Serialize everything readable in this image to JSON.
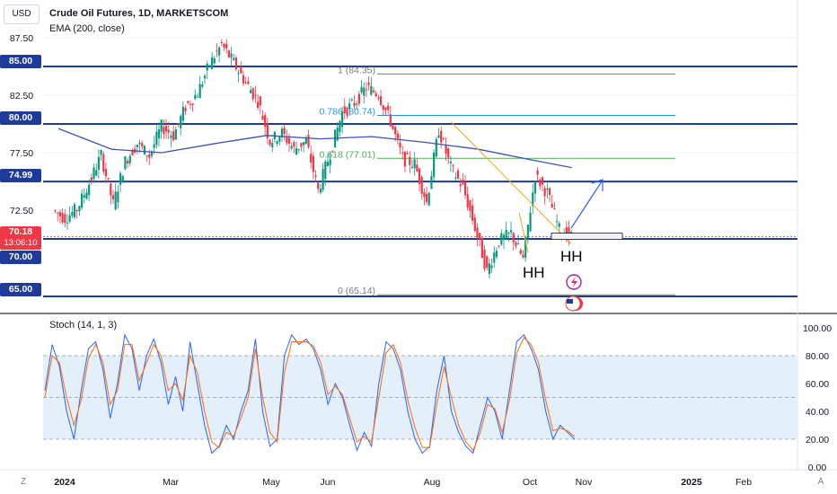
{
  "header": {
    "currency": "USD",
    "title": "Crude Oil Futures, 1D, MARKETSCOM",
    "ema_label": "EMA (200, close)",
    "stoch_label": "Stoch (14, 1, 3)"
  },
  "price_tags": {
    "current_price": "70.18",
    "countdown": "13:06:10",
    "levels": [
      "85.00",
      "80.00",
      "74.99",
      "70.00",
      "65.00"
    ]
  },
  "corner_buttons": {
    "left": "Z",
    "right": "A"
  },
  "chart_data": [
    {
      "type": "candlestick",
      "title": "Crude Oil Futures, 1D, MARKETSCOM",
      "y_axis": {
        "ticks": [
          "87.50",
          "82.50",
          "77.50",
          "72.50"
        ],
        "range": [
          64,
          89
        ]
      },
      "x_axis": {
        "ticks": [
          "2024",
          "Mar",
          "May",
          "Jun",
          "Aug",
          "Oct",
          "Nov",
          "2025",
          "Feb"
        ]
      },
      "series": [
        {
          "name": "EMA (200, close)",
          "color": "#3f51b5",
          "x": [
            "2024-01-01",
            "2024-02-01",
            "2024-03-01",
            "2024-04-01",
            "2024-05-01",
            "2024-06-01",
            "2024-07-01",
            "2024-08-01",
            "2024-09-01",
            "2024-10-01",
            "2024-10-25"
          ],
          "values": [
            79.6,
            77.8,
            77.5,
            78.3,
            79.0,
            78.7,
            78.9,
            78.4,
            77.8,
            76.9,
            76.2
          ]
        }
      ],
      "horizontal_levels": [
        85.0,
        80.0,
        74.99,
        70.0,
        65.0
      ],
      "fibonacci": [
        {
          "label": "1 (84.35)",
          "value": 84.35
        },
        {
          "label": "0.786 (80.74)",
          "value": 80.74
        },
        {
          "label": "0.618 (77.01)",
          "value": 77.01
        },
        {
          "label": "0 (65.14)",
          "value": 65.14
        }
      ],
      "annotations": [
        "HH",
        "HH"
      ],
      "candles": [
        [
          "2024-01-02",
          72.5,
          73.5,
          71.0,
          71.8
        ],
        [
          "2024-01-09",
          71.8,
          73.2,
          70.8,
          72.6
        ],
        [
          "2024-01-16",
          72.6,
          75.2,
          72.0,
          74.8
        ],
        [
          "2024-01-23",
          74.8,
          77.8,
          74.2,
          77.3
        ],
        [
          "2024-01-30",
          77.3,
          78.2,
          72.2,
          73.0
        ],
        [
          "2024-02-06",
          73.0,
          77.0,
          72.5,
          76.8
        ],
        [
          "2024-02-13",
          76.8,
          79.1,
          75.8,
          78.3
        ],
        [
          "2024-02-20",
          78.3,
          79.0,
          76.4,
          77.2
        ],
        [
          "2024-02-27",
          77.2,
          80.3,
          77.0,
          79.8
        ],
        [
          "2024-03-05",
          79.8,
          80.4,
          77.8,
          79.0
        ],
        [
          "2024-03-12",
          79.0,
          82.0,
          78.6,
          81.5
        ],
        [
          "2024-03-19",
          81.5,
          83.0,
          80.2,
          82.7
        ],
        [
          "2024-03-26",
          82.7,
          85.5,
          81.7,
          85.2
        ],
        [
          "2024-04-02",
          85.2,
          87.4,
          84.8,
          86.9
        ],
        [
          "2024-04-09",
          86.9,
          87.7,
          84.6,
          85.3
        ],
        [
          "2024-04-16",
          85.3,
          86.2,
          82.2,
          83.6
        ],
        [
          "2024-04-23",
          83.6,
          84.3,
          81.2,
          82.0
        ],
        [
          "2024-04-30",
          82.0,
          82.3,
          78.0,
          78.5
        ],
        [
          "2024-05-07",
          78.5,
          79.8,
          77.5,
          79.2
        ],
        [
          "2024-05-14",
          79.2,
          80.2,
          77.4,
          77.8
        ],
        [
          "2024-05-21",
          77.8,
          79.0,
          76.8,
          78.5
        ],
        [
          "2024-05-28",
          78.5,
          79.5,
          73.0,
          74.2
        ],
        [
          "2024-06-04",
          74.2,
          78.0,
          73.5,
          77.5
        ],
        [
          "2024-06-11",
          77.5,
          81.5,
          77.0,
          81.0
        ],
        [
          "2024-06-18",
          81.0,
          82.5,
          80.0,
          81.8
        ],
        [
          "2024-06-25",
          81.8,
          84.5,
          81.2,
          83.2
        ],
        [
          "2024-07-02",
          83.2,
          84.5,
          82.0,
          82.6
        ],
        [
          "2024-07-09",
          82.6,
          83.5,
          79.8,
          80.2
        ],
        [
          "2024-07-16",
          80.2,
          80.8,
          76.3,
          77.0
        ],
        [
          "2024-07-23",
          77.0,
          79.5,
          75.0,
          76.5
        ],
        [
          "2024-07-30",
          76.5,
          77.5,
          72.5,
          73.2
        ],
        [
          "2024-08-06",
          73.2,
          80.3,
          72.8,
          79.5
        ],
        [
          "2024-08-13",
          79.5,
          79.8,
          75.5,
          76.2
        ],
        [
          "2024-08-20",
          76.2,
          77.8,
          73.5,
          74.5
        ],
        [
          "2024-08-27",
          74.5,
          76.5,
          70.5,
          71.0
        ],
        [
          "2024-09-03",
          71.0,
          71.8,
          66.0,
          67.2
        ],
        [
          "2024-09-10",
          67.2,
          70.5,
          65.5,
          69.8
        ],
        [
          "2024-09-17",
          69.8,
          71.5,
          68.0,
          70.5
        ],
        [
          "2024-09-24",
          70.5,
          72.5,
          67.0,
          68.2
        ],
        [
          "2024-10-01",
          68.2,
          77.5,
          68.0,
          75.5
        ],
        [
          "2024-10-08",
          75.5,
          78.5,
          72.8,
          74.0
        ],
        [
          "2024-10-15",
          74.0,
          74.5,
          68.8,
          70.8
        ],
        [
          "2024-10-22",
          70.8,
          72.2,
          69.0,
          70.18
        ]
      ]
    },
    {
      "type": "line",
      "title": "Stoch (14, 1, 3)",
      "y_axis": {
        "ticks": [
          "100.00",
          "80.00",
          "60.00",
          "40.00",
          "20.00",
          "0.00"
        ],
        "range": [
          0,
          100
        ]
      },
      "band": [
        20,
        80
      ],
      "series": [
        {
          "name": "%K",
          "color": "#2962ff",
          "values": [
            55,
            88,
            72,
            40,
            20,
            55,
            85,
            90,
            70,
            35,
            60,
            95,
            85,
            55,
            80,
            92,
            75,
            45,
            65,
            40,
            90,
            60,
            30,
            10,
            15,
            30,
            20,
            40,
            55,
            92,
            40,
            15,
            20,
            80,
            95,
            88,
            92,
            85,
            70,
            45,
            60,
            50,
            30,
            12,
            25,
            15,
            60,
            90,
            85,
            70,
            40,
            20,
            10,
            15,
            55,
            80,
            40,
            25,
            15,
            10,
            30,
            50,
            40,
            20,
            55,
            90,
            95,
            85,
            70,
            40,
            20,
            30,
            25,
            20
          ]
        },
        {
          "name": "%D",
          "color": "#ff6d00",
          "values": [
            50,
            80,
            75,
            50,
            30,
            48,
            78,
            88,
            75,
            45,
            55,
            88,
            88,
            62,
            75,
            88,
            80,
            55,
            60,
            48,
            80,
            68,
            40,
            18,
            14,
            25,
            22,
            35,
            50,
            85,
            50,
            25,
            18,
            68,
            90,
            90,
            90,
            87,
            75,
            52,
            58,
            52,
            35,
            18,
            22,
            18,
            50,
            82,
            88,
            75,
            48,
            28,
            14,
            14,
            45,
            72,
            50,
            30,
            18,
            12,
            25,
            45,
            42,
            25,
            48,
            82,
            93,
            88,
            75,
            48,
            26,
            28,
            26,
            22
          ]
        }
      ]
    }
  ]
}
